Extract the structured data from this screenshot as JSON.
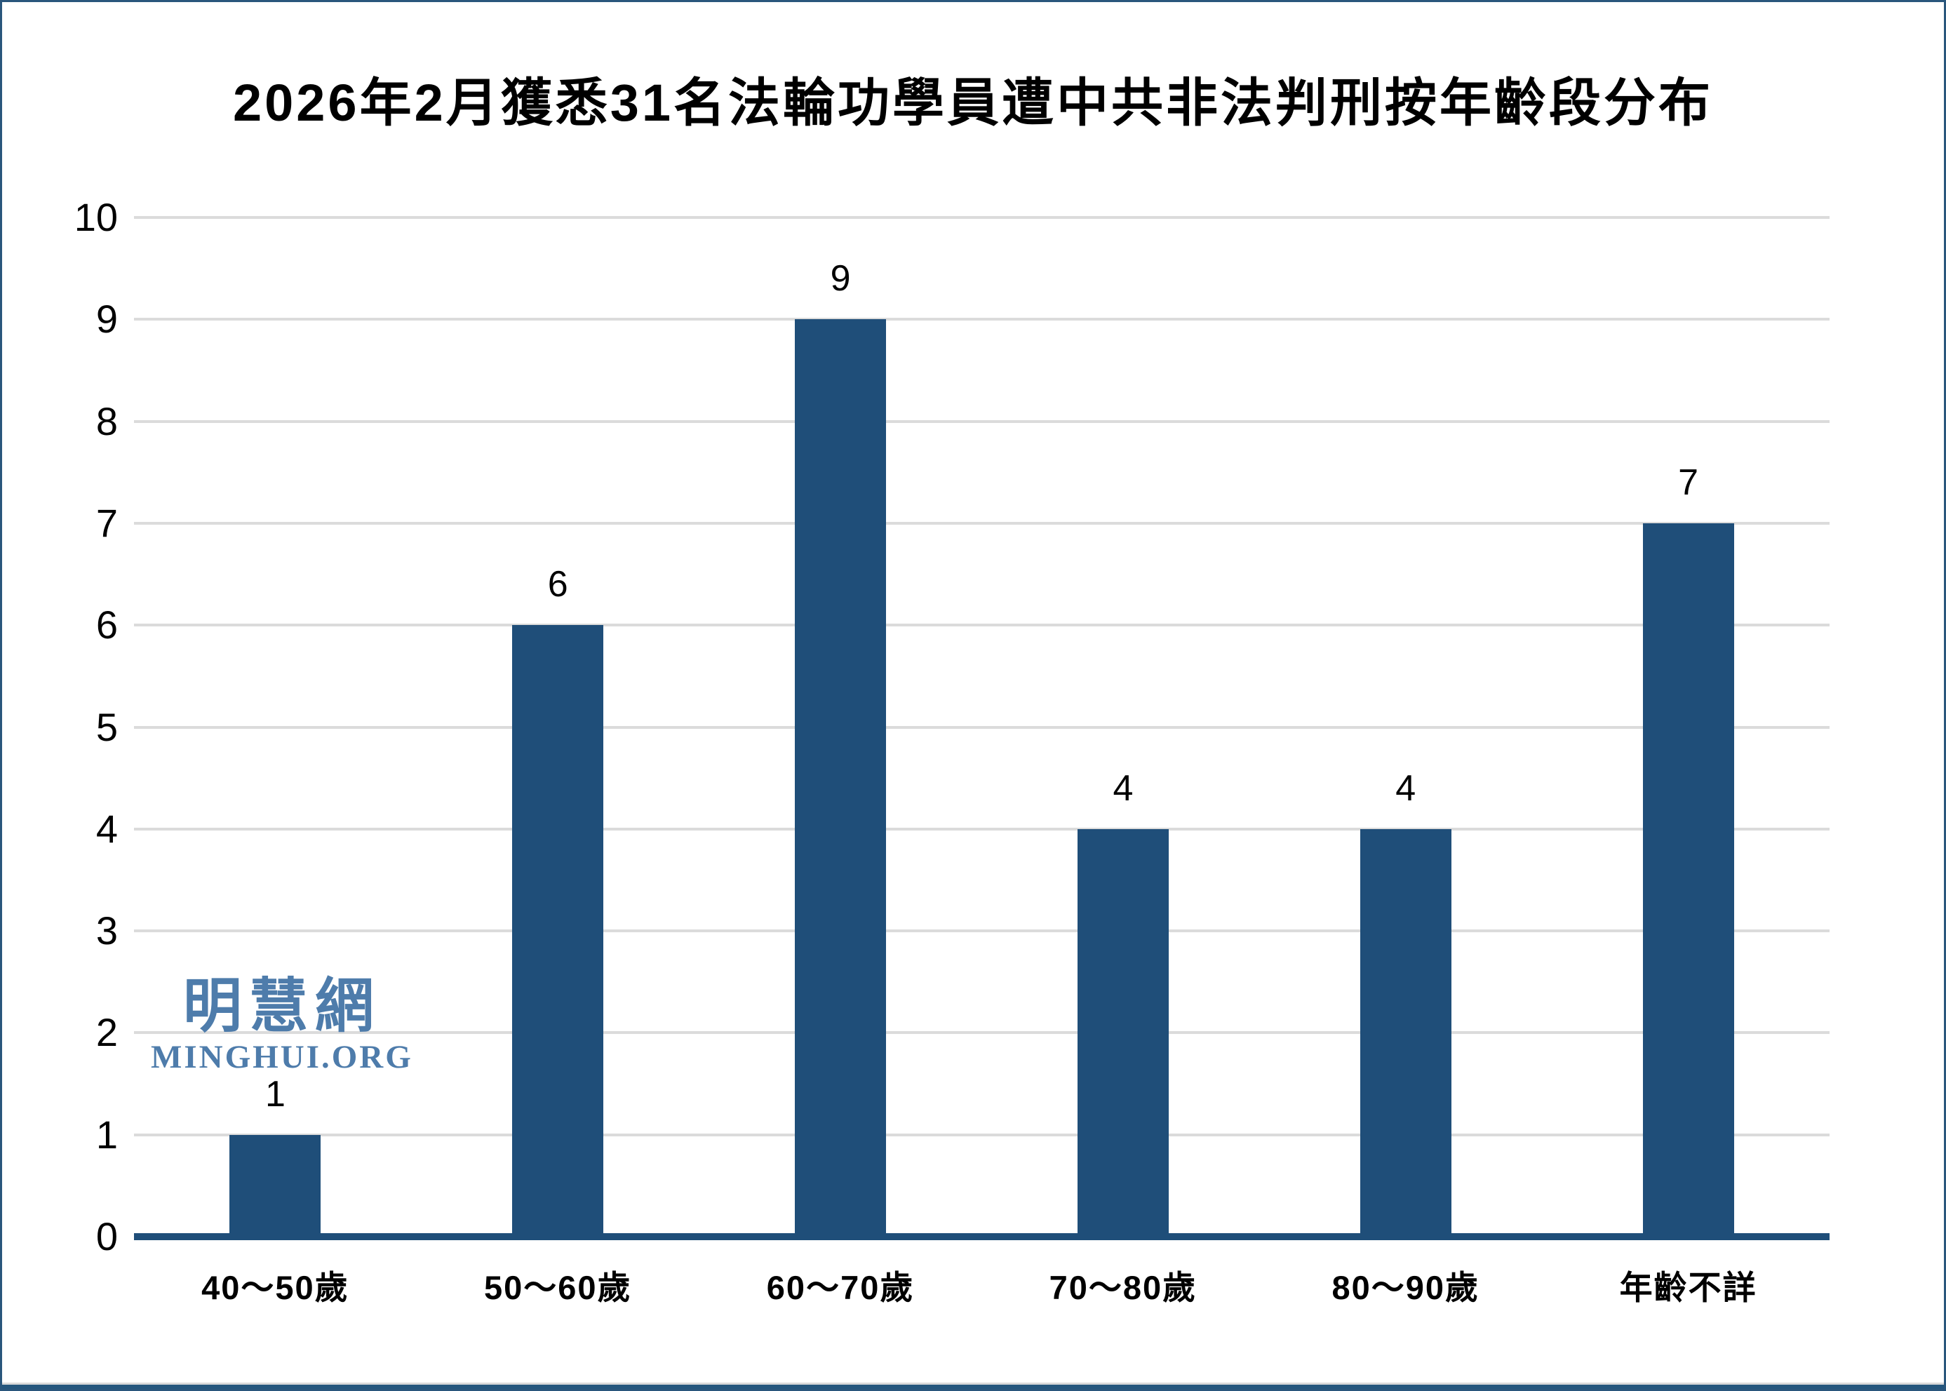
{
  "watermark": {
    "cjk": "明慧網",
    "latin": "MINGHUI.ORG",
    "color": "#4E7CAB"
  },
  "chart_data": {
    "type": "bar",
    "title": "2026年2月獲悉31名法輪功學員遭中共非法判刑按年齡段分布",
    "categories": [
      "40～50歲",
      "50～60歲",
      "60～70歲",
      "70～80歲",
      "80～90歲",
      "年齡不詳"
    ],
    "values": [
      1,
      6,
      9,
      4,
      4,
      7
    ],
    "total_mentioned_in_title": 31,
    "xlabel": "",
    "ylabel": "",
    "ylim": [
      0,
      10
    ],
    "ytick_step": 1,
    "yticks": [
      0,
      1,
      2,
      3,
      4,
      5,
      6,
      7,
      8,
      9,
      10
    ],
    "grid": true,
    "legend": false,
    "bar_color": "#1F4E79",
    "axis_line_color": "#1F4E79",
    "gridline_color": "#DBDBDB",
    "text_color": "#000000"
  }
}
